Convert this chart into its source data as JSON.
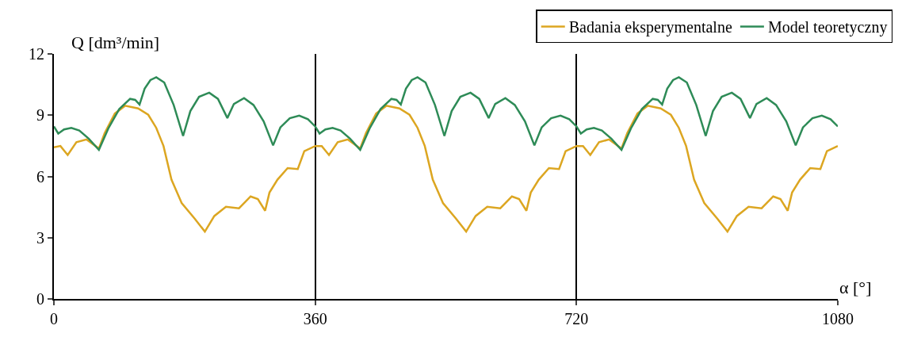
{
  "chart_data": {
    "type": "line",
    "ylabel": "Q [dm³/min]",
    "xlabel": "α [°]",
    "xlim": [
      0,
      1080
    ],
    "xticks": [
      0,
      360,
      720,
      1080
    ],
    "ylim": [
      0,
      12
    ],
    "yticks": [
      0,
      3,
      6,
      9,
      12
    ],
    "grid": "x",
    "legend": "top right",
    "marker": "none",
    "line_style": "solid",
    "series": [
      {
        "name": "Badania eksperymentalne",
        "color": "#dca621",
        "x": [
          0,
          9,
          19,
          31,
          45,
          62,
          70,
          84,
          98,
          116,
          130,
          141,
          151,
          162,
          176,
          194,
          208,
          221,
          237,
          255,
          271,
          281,
          291,
          297,
          308,
          322,
          336,
          345,
          360,
          369,
          379,
          391,
          405,
          422,
          430,
          444,
          458,
          476,
          490,
          501,
          511,
          522,
          536,
          554,
          568,
          581,
          597,
          615,
          631,
          641,
          651,
          657,
          668,
          682,
          696,
          705,
          720,
          729,
          739,
          751,
          765,
          782,
          790,
          804,
          818,
          836,
          850,
          861,
          871,
          882,
          896,
          914,
          928,
          941,
          957,
          975,
          991,
          1001,
          1011,
          1017,
          1028,
          1042,
          1056,
          1065,
          1080
        ],
        "values": [
          7.43,
          7.49,
          7.05,
          7.68,
          7.81,
          7.37,
          8.13,
          9.08,
          9.46,
          9.33,
          9.02,
          8.38,
          7.49,
          5.84,
          4.7,
          3.93,
          3.3,
          4.06,
          4.51,
          4.44,
          5.02,
          4.89,
          4.32,
          5.21,
          5.84,
          6.41,
          6.36,
          7.24,
          7.49,
          7.49,
          7.05,
          7.68,
          7.81,
          7.37,
          8.13,
          9.08,
          9.46,
          9.33,
          9.02,
          8.38,
          7.49,
          5.84,
          4.7,
          3.93,
          3.3,
          4.06,
          4.51,
          4.44,
          5.02,
          4.89,
          4.32,
          5.21,
          5.84,
          6.41,
          6.36,
          7.24,
          7.49,
          7.49,
          7.05,
          7.68,
          7.81,
          7.37,
          8.13,
          9.08,
          9.46,
          9.33,
          9.02,
          8.38,
          7.49,
          5.84,
          4.7,
          3.93,
          3.3,
          4.06,
          4.51,
          4.44,
          5.02,
          4.89,
          4.32,
          5.21,
          5.84,
          6.41,
          6.36,
          7.24,
          7.49
        ]
      },
      {
        "name": "Model teoretyczny",
        "color": "#2e8b57",
        "x": [
          0,
          6,
          14,
          24,
          35,
          48,
          62,
          75,
          90,
          105,
          112,
          118,
          125,
          133,
          141,
          152,
          165,
          178,
          188,
          200,
          214,
          226,
          239,
          248,
          262,
          275,
          289,
          302,
          312,
          325,
          338,
          350,
          360,
          366,
          374,
          384,
          395,
          408,
          422,
          435,
          450,
          465,
          472,
          478,
          485,
          493,
          501,
          512,
          525,
          538,
          548,
          560,
          574,
          586,
          599,
          608,
          622,
          635,
          649,
          662,
          672,
          685,
          698,
          710,
          720,
          726,
          734,
          744,
          755,
          768,
          782,
          795,
          810,
          825,
          832,
          838,
          845,
          853,
          861,
          872,
          885,
          898,
          908,
          920,
          934,
          946,
          959,
          968,
          982,
          995,
          1009,
          1022,
          1032,
          1045,
          1058,
          1070,
          1080
        ],
        "values": [
          8.45,
          8.1,
          8.3,
          8.38,
          8.25,
          7.85,
          7.3,
          8.35,
          9.3,
          9.8,
          9.75,
          9.52,
          10.3,
          10.72,
          10.86,
          10.6,
          9.5,
          7.98,
          9.2,
          9.9,
          10.1,
          9.8,
          8.86,
          9.55,
          9.84,
          9.5,
          8.7,
          7.52,
          8.4,
          8.85,
          8.98,
          8.8,
          8.45,
          8.1,
          8.3,
          8.38,
          8.25,
          7.85,
          7.3,
          8.35,
          9.3,
          9.8,
          9.75,
          9.52,
          10.3,
          10.72,
          10.86,
          10.6,
          9.5,
          7.98,
          9.2,
          9.9,
          10.1,
          9.8,
          8.86,
          9.55,
          9.84,
          9.5,
          8.7,
          7.52,
          8.4,
          8.85,
          8.98,
          8.8,
          8.45,
          8.1,
          8.3,
          8.38,
          8.25,
          7.85,
          7.3,
          8.35,
          9.3,
          9.8,
          9.75,
          9.52,
          10.3,
          10.72,
          10.86,
          10.6,
          9.5,
          7.98,
          9.2,
          9.9,
          10.1,
          9.8,
          8.86,
          9.55,
          9.84,
          9.5,
          8.7,
          7.52,
          8.4,
          8.85,
          8.98,
          8.8,
          8.45
        ]
      }
    ]
  }
}
